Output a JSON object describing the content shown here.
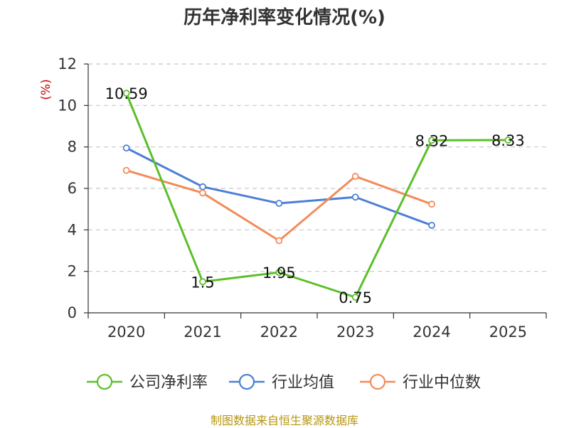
{
  "chart_data": {
    "type": "line",
    "title": "历年净利率变化情况(%)",
    "ylabel": "(%)",
    "categories": [
      "2020",
      "2021",
      "2022",
      "2023",
      "2024",
      "2025"
    ],
    "ylim": [
      0,
      12
    ],
    "yticks": [
      0,
      2,
      4,
      6,
      8,
      10,
      12
    ],
    "grid": true,
    "legend_position": "bottom",
    "series": [
      {
        "name": "公司净利率",
        "color": "#5cbf2a",
        "values": [
          10.59,
          1.5,
          1.95,
          0.75,
          8.32,
          8.33
        ],
        "labels": [
          "10.59",
          "1.5",
          "1.95",
          "0.75",
          "8.32",
          "8.33"
        ]
      },
      {
        "name": "行业均值",
        "color": "#4c7fd6",
        "values": [
          7.95,
          6.08,
          5.28,
          5.58,
          4.22,
          null
        ]
      },
      {
        "name": "行业中位数",
        "color": "#f28c5a",
        "values": [
          6.87,
          5.78,
          3.48,
          6.58,
          5.24,
          null
        ]
      }
    ]
  },
  "source_text": "制图数据来自恒生聚源数据库"
}
